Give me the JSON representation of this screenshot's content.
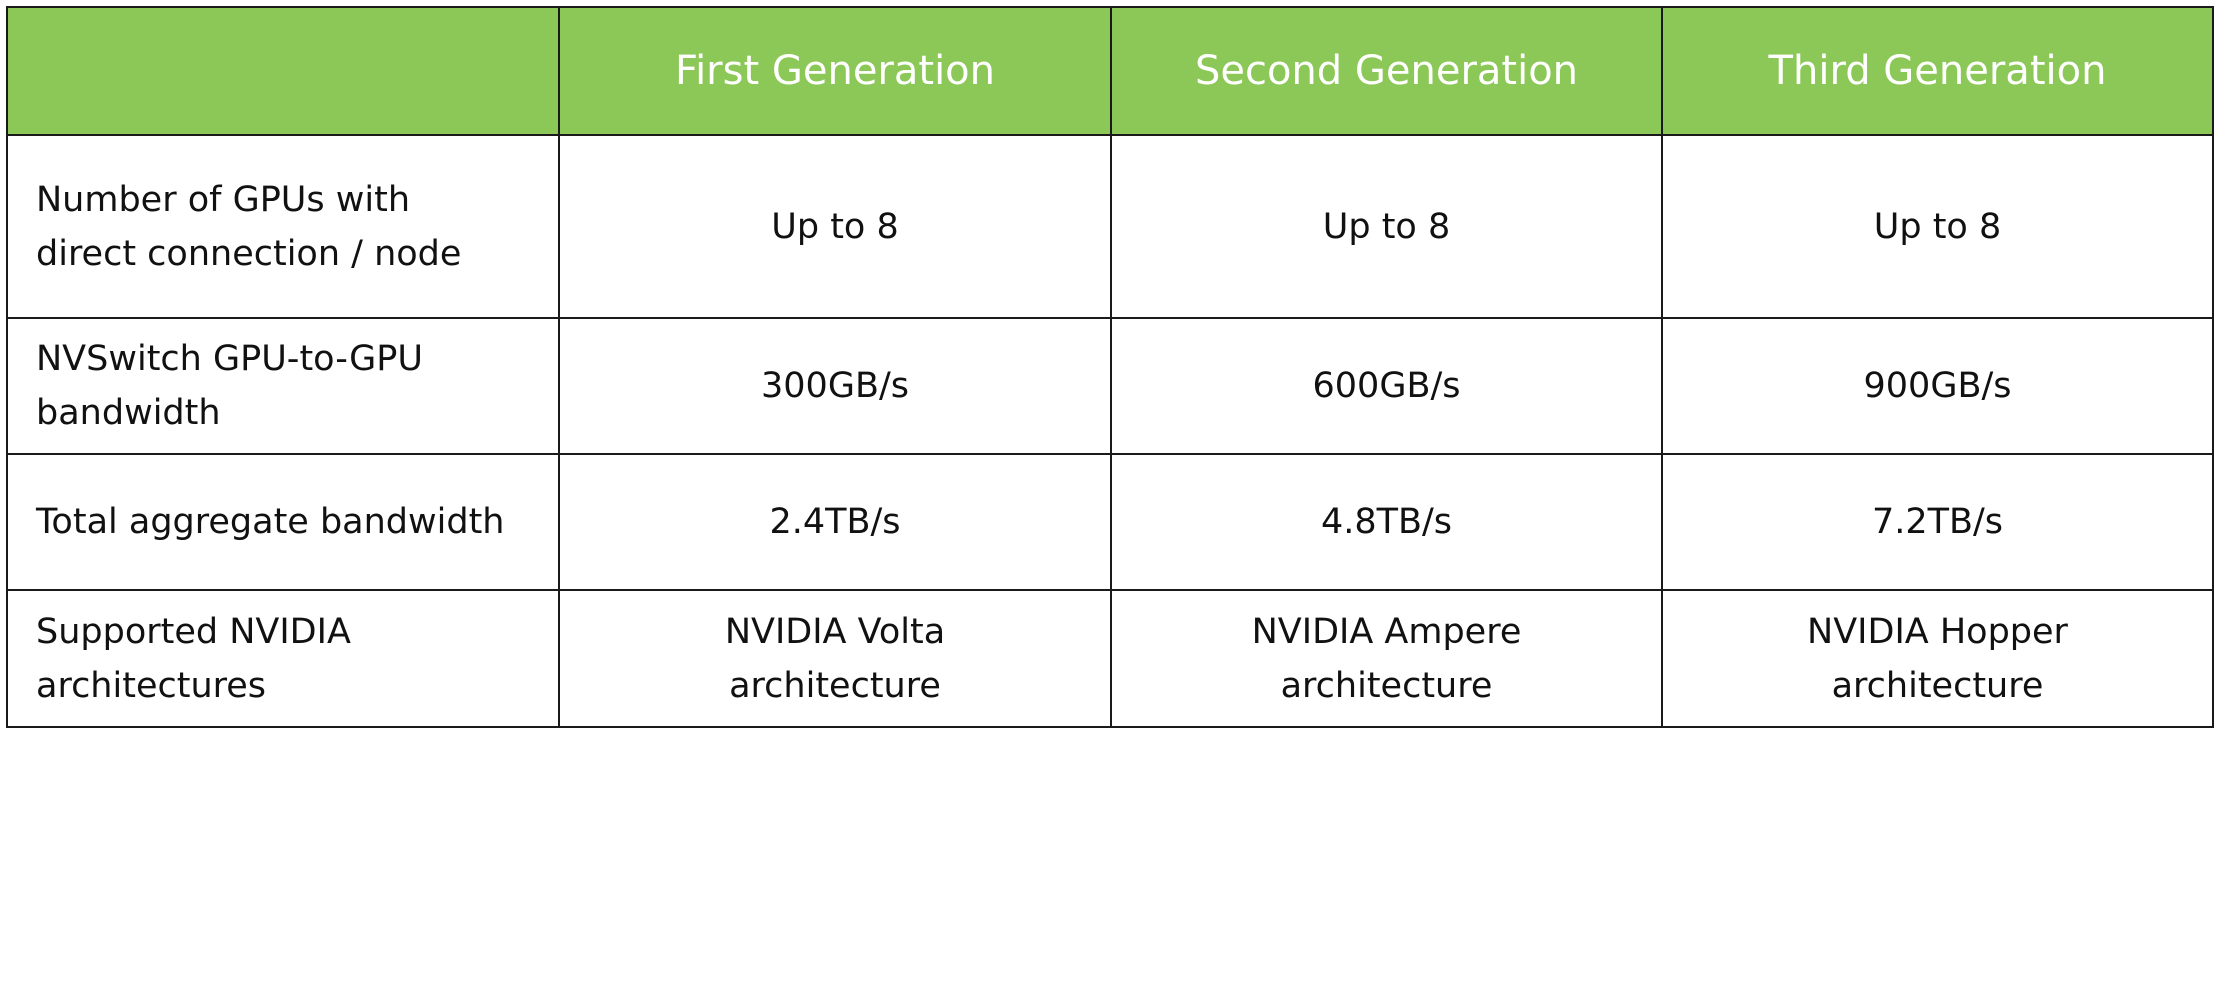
{
  "table": {
    "header": [
      "First Generation",
      "Second Generation",
      "Third Generation"
    ],
    "rows": [
      [
        [
          "Number of GPUs with",
          "direct connection / node"
        ],
        [
          "Up to 8"
        ],
        [
          "Up to 8"
        ],
        [
          "Up to 8"
        ]
      ],
      [
        [
          "NVSwitch GPU-to-GPU",
          "bandwidth"
        ],
        [
          "300GB/s"
        ],
        [
          "600GB/s"
        ],
        [
          "900GB/s"
        ]
      ],
      [
        [
          "Total aggregate bandwidth"
        ],
        [
          "2.4TB/s"
        ],
        [
          "4.8TB/s"
        ],
        [
          "7.2TB/s"
        ]
      ],
      [
        [
          "Supported NVIDIA",
          "architectures"
        ],
        [
          "NVIDIA Volta",
          "architecture"
        ],
        [
          "NVIDIA Ampere",
          "architecture"
        ],
        [
          "NVIDIA Hopper",
          "architecture"
        ]
      ]
    ]
  }
}
